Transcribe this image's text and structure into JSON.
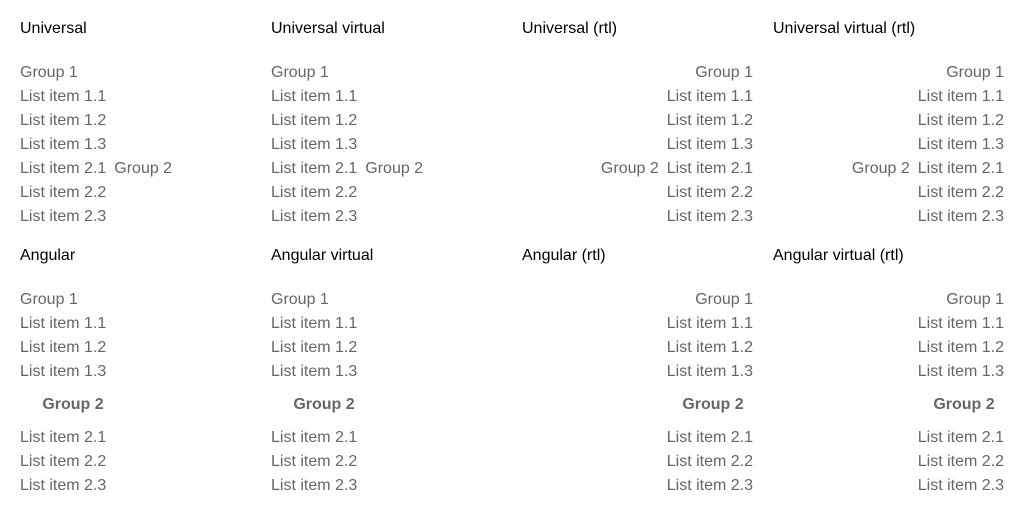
{
  "panels": [
    {
      "title": "Universal",
      "group1": "Group 1",
      "items1": [
        "List item 1.1",
        "List item 1.2",
        "List item 1.3"
      ],
      "group2": "Group 2",
      "items2": [
        "List item 2.1",
        "List item 2.2",
        "List item 2.3"
      ]
    },
    {
      "title": "Universal virtual",
      "group1": "Group 1",
      "items1": [
        "List item 1.1",
        "List item 1.2",
        "List item 1.3"
      ],
      "group2": "Group 2",
      "items2": [
        "List item 2.1",
        "List item 2.2",
        "List item 2.3"
      ]
    },
    {
      "title": "Universal (rtl)",
      "group1": "Group 1",
      "items1": [
        "List item 1.1",
        "List item 1.2",
        "List item 1.3"
      ],
      "group2": "Group 2",
      "items2": [
        "List item 2.1",
        "List item 2.2",
        "List item 2.3"
      ]
    },
    {
      "title": "Universal virtual (rtl)",
      "group1": "Group 1",
      "items1": [
        "List item 1.1",
        "List item 1.2",
        "List item 1.3"
      ],
      "group2": "Group 2",
      "items2": [
        "List item 2.1",
        "List item 2.2",
        "List item 2.3"
      ]
    },
    {
      "title": "Angular",
      "group1": "Group 1",
      "items1": [
        "List item 1.1",
        "List item 1.2",
        "List item 1.3"
      ],
      "group2": "Group 2",
      "items2": [
        "List item 2.1",
        "List item 2.2",
        "List item 2.3"
      ]
    },
    {
      "title": "Angular virtual",
      "group1": "Group 1",
      "items1": [
        "List item 1.1",
        "List item 1.2",
        "List item 1.3"
      ],
      "group2": "Group 2",
      "items2": [
        "List item 2.1",
        "List item 2.2",
        "List item 2.3"
      ]
    },
    {
      "title": "Angular (rtl)",
      "group1": "Group 1",
      "items1": [
        "List item 1.1",
        "List item 1.2",
        "List item 1.3"
      ],
      "group2": "Group 2",
      "items2": [
        "List item 2.1",
        "List item 2.2",
        "List item 2.3"
      ]
    },
    {
      "title": "Angular virtual (rtl)",
      "group1": "Group 1",
      "items1": [
        "List item 1.1",
        "List item 1.2",
        "List item 1.3"
      ],
      "group2": "Group 2",
      "items2": [
        "List item 2.1",
        "List item 2.2",
        "List item 2.3"
      ]
    }
  ]
}
